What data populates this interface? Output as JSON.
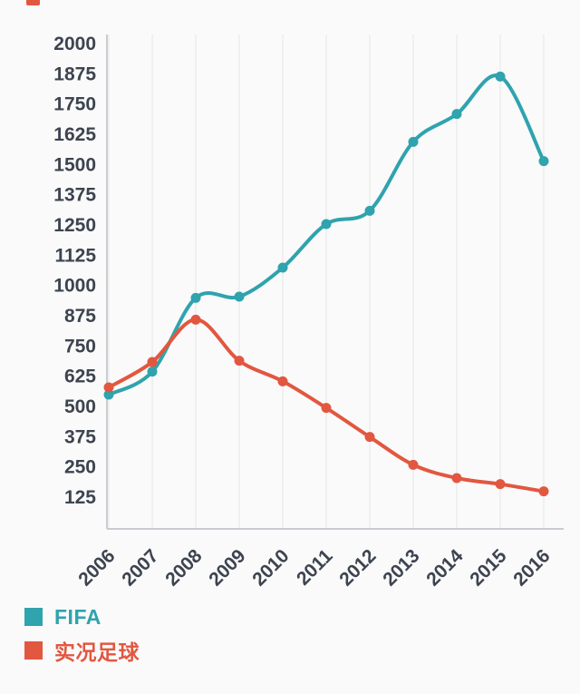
{
  "chart_data": {
    "type": "line",
    "categories": [
      "2006",
      "2007",
      "2008",
      "2009",
      "2010",
      "2011",
      "2012",
      "2013",
      "2014",
      "2015",
      "2016"
    ],
    "series": [
      {
        "name": "FIFA",
        "color": "#2fa3ae",
        "values": [
          545,
          640,
          945,
          950,
          1070,
          1250,
          1305,
          1590,
          1705,
          1860,
          1510
        ]
      },
      {
        "name": "实况足球",
        "color": "#e25740",
        "values": [
          575,
          680,
          855,
          685,
          600,
          490,
          370,
          255,
          200,
          175,
          145
        ]
      }
    ],
    "y_ticks": [
      2000,
      1875,
      1750,
      1625,
      1500,
      1375,
      1250,
      1125,
      1000,
      875,
      750,
      625,
      500,
      375,
      250,
      125
    ],
    "ylim": [
      125,
      2000
    ],
    "title": "",
    "xlabel": "",
    "ylabel": "",
    "grid": "vertical",
    "legend_position": "bottom-left",
    "line_style": "smooth",
    "point_style": "filled-circle"
  },
  "colors": {
    "background": "#fafafa",
    "axis": "#c9cdd1",
    "grid": "#ededed",
    "tick_text": "#3d4450",
    "artifact": "#e25740"
  }
}
